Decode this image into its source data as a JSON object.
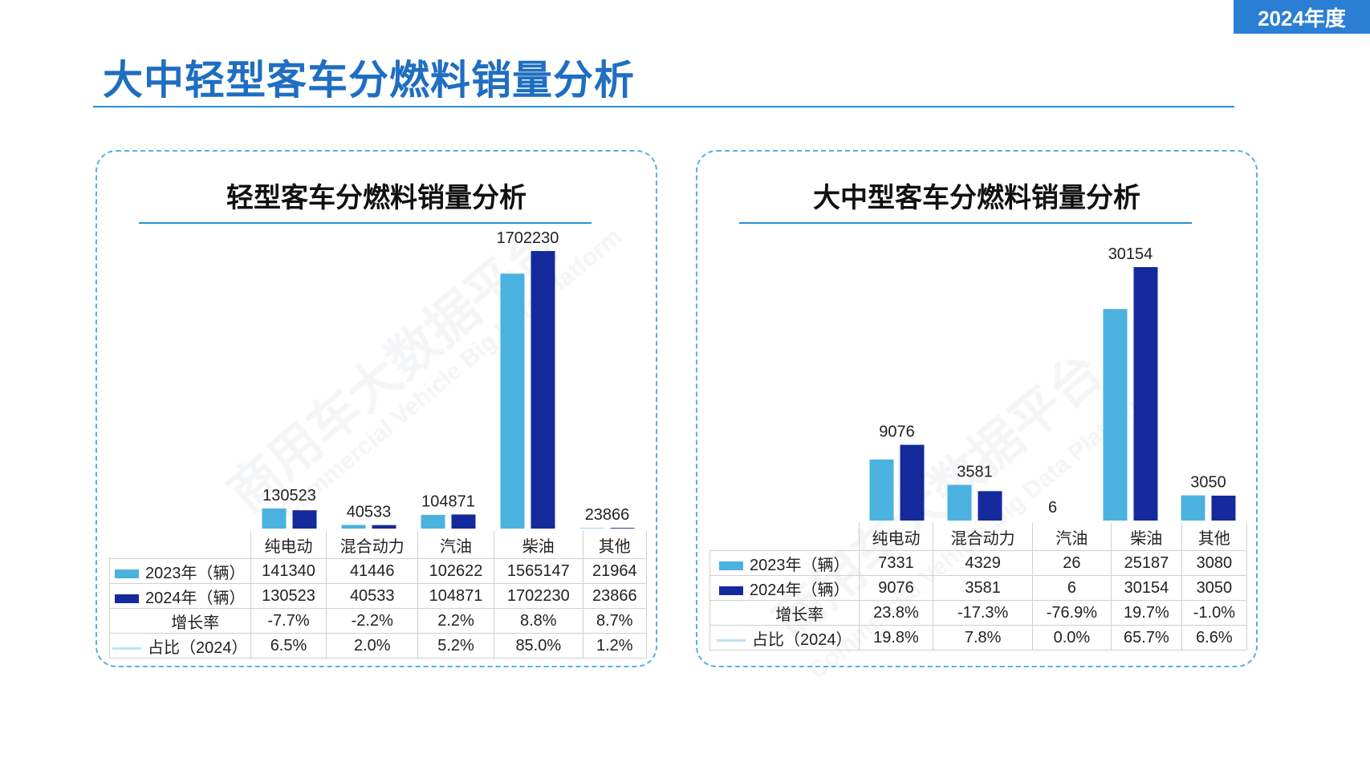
{
  "header": {
    "badge": "2024年度",
    "title": "大中轻型客车分燃料销量分析"
  },
  "watermark": {
    "cn": "商用车大数据平台",
    "en": "Commercial Vehicle Big Data Platform"
  },
  "colors": {
    "series2023": "#4bb2e0",
    "series2024": "#142a9c",
    "share_line": "#bfe2f6",
    "accent": "#2a7fd4"
  },
  "chart_data": [
    {
      "type": "bar",
      "title": "轻型客车分燃料销量分析",
      "categories": [
        "纯电动",
        "混合动力",
        "汽油",
        "柴油",
        "其他"
      ],
      "series": [
        {
          "name": "2023年（辆）",
          "values": [
            141340,
            41446,
            102622,
            1565147,
            21964
          ]
        },
        {
          "name": "2024年（辆）",
          "values": [
            130523,
            40533,
            104871,
            1702230,
            23866
          ]
        }
      ],
      "data_labels": [
        "130523",
        "40533",
        "104871",
        "1702230",
        "23866"
      ],
      "rows": [
        {
          "label": "2023年（辆）",
          "legend": "bar2023",
          "values": [
            "141340",
            "41446",
            "102622",
            "1565147",
            "21964"
          ]
        },
        {
          "label": "2024年（辆）",
          "legend": "bar2024",
          "values": [
            "130523",
            "40533",
            "104871",
            "1702230",
            "23866"
          ]
        },
        {
          "label": "增长率",
          "legend": "none",
          "values": [
            "-7.7%",
            "-2.2%",
            "2.2%",
            "8.8%",
            "8.7%"
          ]
        },
        {
          "label": "占比（2024）",
          "legend": "line",
          "values": [
            "6.5%",
            "2.0%",
            "5.2%",
            "85.0%",
            "1.2%"
          ]
        }
      ],
      "ylim": [
        0,
        1702230
      ],
      "grid": false
    },
    {
      "type": "bar",
      "title": "大中型客车分燃料销量分析",
      "categories": [
        "纯电动",
        "混合动力",
        "汽油",
        "柴油",
        "其他"
      ],
      "series": [
        {
          "name": "2023年（辆）",
          "values": [
            7331,
            4329,
            26,
            25187,
            3080
          ]
        },
        {
          "name": "2024年（辆）",
          "values": [
            9076,
            3581,
            6,
            30154,
            3050
          ]
        }
      ],
      "data_labels": [
        "9076",
        "3581",
        "6",
        "30154",
        "3050"
      ],
      "rows": [
        {
          "label": "2023年（辆）",
          "legend": "bar2023",
          "values": [
            "7331",
            "4329",
            "26",
            "25187",
            "3080"
          ]
        },
        {
          "label": "2024年（辆）",
          "legend": "bar2024",
          "values": [
            "9076",
            "3581",
            "6",
            "30154",
            "3050"
          ]
        },
        {
          "label": "增长率",
          "legend": "none",
          "values": [
            "23.8%",
            "-17.3%",
            "-76.9%",
            "19.7%",
            "-1.0%"
          ]
        },
        {
          "label": "占比（2024）",
          "legend": "line",
          "values": [
            "19.8%",
            "7.8%",
            "0.0%",
            "65.7%",
            "6.6%"
          ]
        }
      ],
      "ylim": [
        0,
        30154
      ],
      "grid": false
    }
  ]
}
